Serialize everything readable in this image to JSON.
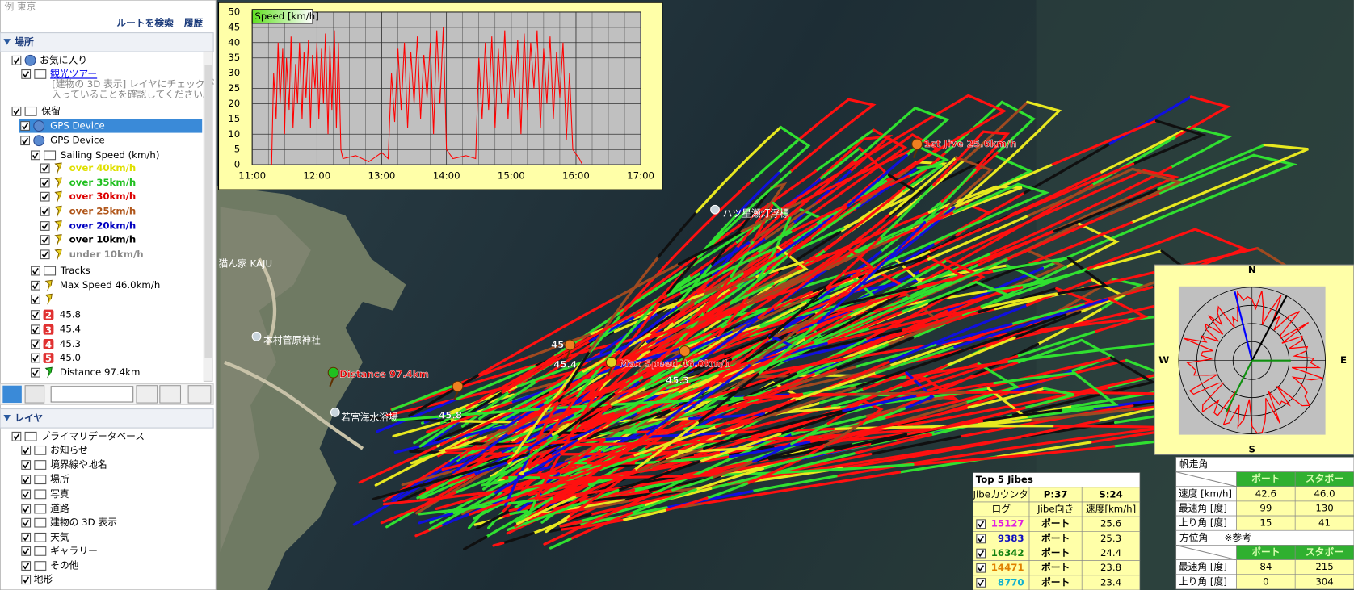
{
  "search": {
    "hint": "例 東京",
    "route": "ルートを検索",
    "history": "履歴"
  },
  "places": {
    "title": "場所",
    "items": [
      {
        "label": "お気に入り"
      },
      {
        "label": "観光ツアー",
        "link": true
      },
      {
        "label": "[建物の 3D 表示] レイヤにチェックが"
      },
      {
        "label": "入っていることを確認してください。"
      },
      {
        "label": "保留"
      },
      {
        "label": "GPS Device",
        "selected": true
      },
      {
        "label": "GPS Device"
      },
      {
        "label": "Sailing Speed (km/h)"
      },
      {
        "label": "over 40km/h",
        "color": "#e0e000"
      },
      {
        "label": "over 35km/h",
        "color": "#20c020"
      },
      {
        "label": "over 30km/h",
        "color": "#dd0000"
      },
      {
        "label": "over 25km/h",
        "color": "#b0561a"
      },
      {
        "label": "over 20km/h",
        "color": "#0000c0"
      },
      {
        "label": "over 10km/h",
        "color": "#000000"
      },
      {
        "label": "under 10km/h",
        "color": "#8a8a8a"
      },
      {
        "label": "Tracks"
      },
      {
        "label": "Max Speed 46.0km/h"
      },
      {
        "label": "45.8",
        "badge": "2"
      },
      {
        "label": "45.4",
        "badge": "3"
      },
      {
        "label": "45.3",
        "badge": "4"
      },
      {
        "label": "45.0",
        "badge": "5"
      },
      {
        "label": "Distance 97.4km"
      }
    ]
  },
  "layers": {
    "title": "レイヤ",
    "items": [
      {
        "label": "プライマリデータベース"
      },
      {
        "label": "お知らせ"
      },
      {
        "label": "境界線や地名"
      },
      {
        "label": "場所"
      },
      {
        "label": "写真"
      },
      {
        "label": "道路"
      },
      {
        "label": "建物の 3D 表示"
      },
      {
        "label": "天気"
      },
      {
        "label": "ギャラリー"
      },
      {
        "label": "その他"
      },
      {
        "label": "地形"
      }
    ]
  },
  "map": {
    "labels": [
      {
        "text": "1st Jive 25.6km/h",
        "kind": "track"
      },
      {
        "text": "ハツ星瀬灯浮標",
        "kind": "place"
      },
      {
        "text": "猫ん家 KAJU",
        "kind": "place"
      },
      {
        "text": "本村菅原神社",
        "kind": "place"
      },
      {
        "text": "若宮海水浴場",
        "kind": "place"
      },
      {
        "text": "Distance 97.4km",
        "kind": "track"
      },
      {
        "text": "Max Speed 46.0km/h",
        "kind": "track"
      },
      {
        "text": "45.0",
        "kind": "speed"
      },
      {
        "text": "45.4",
        "kind": "speed"
      },
      {
        "text": "45.3",
        "kind": "speed"
      },
      {
        "text": "45.8",
        "kind": "speed"
      }
    ]
  },
  "chart_data": {
    "type": "line",
    "x": [
      11.3,
      11.33,
      11.37,
      11.4,
      11.43,
      11.47,
      11.5,
      11.53,
      11.57,
      11.6,
      11.63,
      11.67,
      11.7,
      11.73,
      11.77,
      11.8,
      11.83,
      11.87,
      11.9,
      11.93,
      11.97,
      12.0,
      12.03,
      12.07,
      12.1,
      12.13,
      12.17,
      12.2,
      12.23,
      12.27,
      12.3,
      12.33,
      12.37,
      12.4,
      12.6,
      12.8,
      13.0,
      13.1,
      13.15,
      13.2,
      13.25,
      13.3,
      13.35,
      13.4,
      13.45,
      13.5,
      13.55,
      13.6,
      13.65,
      13.7,
      13.75,
      13.8,
      13.85,
      13.9,
      13.95,
      14.0,
      14.1,
      14.3,
      14.45,
      14.5,
      14.55,
      14.6,
      14.65,
      14.7,
      14.75,
      14.8,
      14.85,
      14.9,
      14.95,
      15.0,
      15.05,
      15.1,
      15.15,
      15.2,
      15.25,
      15.3,
      15.35,
      15.4,
      15.45,
      15.5,
      15.55,
      15.6,
      15.65,
      15.7,
      15.75,
      15.8,
      15.85,
      15.9,
      15.95,
      16.05,
      16.1
    ],
    "series": [
      {
        "name": "Speed [km/h]",
        "color": "#ff0000",
        "values": [
          0,
          30,
          15,
          40,
          20,
          38,
          10,
          35,
          18,
          42,
          12,
          33,
          20,
          40,
          15,
          37,
          22,
          41,
          12,
          36,
          25,
          40,
          15,
          38,
          20,
          43,
          10,
          39,
          18,
          44,
          12,
          40,
          5,
          2,
          3,
          1,
          4,
          2,
          30,
          14,
          38,
          18,
          40,
          12,
          37,
          20,
          42,
          15,
          36,
          22,
          40,
          10,
          44,
          20,
          45,
          5,
          2,
          3,
          2,
          35,
          15,
          40,
          18,
          42,
          12,
          38,
          20,
          44,
          15,
          36,
          22,
          41,
          10,
          43,
          18,
          40,
          25,
          44,
          12,
          38,
          20,
          42,
          15,
          37,
          22,
          40,
          8,
          30,
          5,
          2,
          0
        ]
      }
    ],
    "xlim": [
      11,
      17
    ],
    "ylim": [
      0,
      50
    ],
    "xticks": [
      {
        "value": 11,
        "label": "11:00"
      },
      {
        "value": 12,
        "label": "12:00"
      },
      {
        "value": 13,
        "label": "13:00"
      },
      {
        "value": 14,
        "label": "14:00"
      },
      {
        "value": 15,
        "label": "15:00"
      },
      {
        "value": 16,
        "label": "16:00"
      },
      {
        "value": 17,
        "label": "17:00"
      }
    ],
    "yticks": [
      0,
      5,
      10,
      15,
      20,
      25,
      30,
      35,
      40,
      45,
      50
    ],
    "grid": true
  },
  "polar": {
    "north": "N",
    "east": "E",
    "south": "S",
    "west": "W"
  },
  "jibes": {
    "title": "Top 5 Jibes",
    "counter": "Jibeカウンタ",
    "port_count": "P:37",
    "stbd_count": "S:24",
    "header": [
      "ログ",
      "Jibe向き",
      "速度[km/h]"
    ],
    "rows": [
      {
        "log": "15127",
        "color": "#e020e0",
        "dir": "ポート",
        "speed": "25.6"
      },
      {
        "log": "9383",
        "color": "#1010c0",
        "dir": "ポート",
        "speed": "25.3"
      },
      {
        "log": "16342",
        "color": "#108010",
        "dir": "ポート",
        "speed": "24.4"
      },
      {
        "log": "14471",
        "color": "#e08000",
        "dir": "ポート",
        "speed": "23.8"
      },
      {
        "log": "8770",
        "color": "#10b0d0",
        "dir": "ポート",
        "speed": "23.4"
      }
    ]
  },
  "sailing": {
    "title": "帆走角",
    "header": [
      "ポート",
      "スタボー"
    ],
    "rows": [
      {
        "label": "速度 [km/h]",
        "port": "42.6",
        "stbd": "46.0"
      },
      {
        "label": "最速角 [度]",
        "port": "99",
        "stbd": "130"
      },
      {
        "label": "上り角 [度]",
        "port": "15",
        "stbd": "41"
      }
    ],
    "subtitle": "方位角",
    "note": "※参考",
    "header2": [
      "ポート",
      "スタボー"
    ],
    "rows2": [
      {
        "label": "最速角 [度]",
        "port": "84",
        "stbd": "215"
      },
      {
        "label": "上り角 [度]",
        "port": "0",
        "stbd": "304"
      }
    ]
  }
}
